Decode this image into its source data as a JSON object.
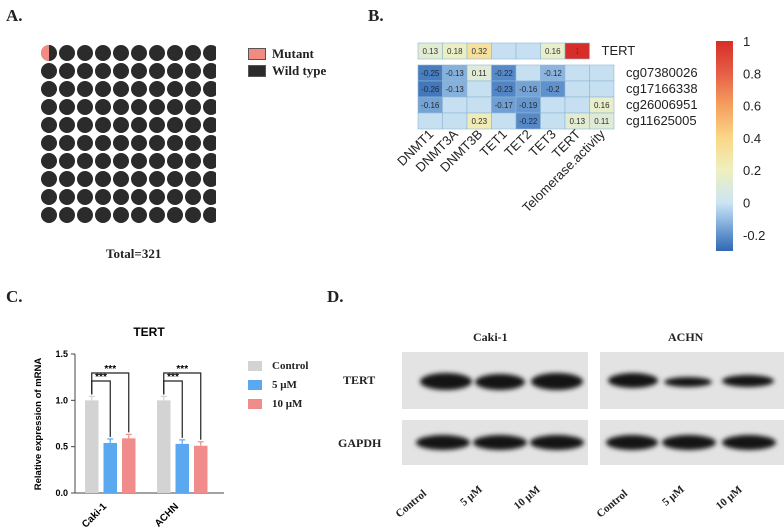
{
  "panelA": {
    "label": "A.",
    "legend": [
      {
        "name": "Mutant",
        "color": "#f28b82"
      },
      {
        "name": "Wild type",
        "color": "#2b2b2b"
      }
    ],
    "total_label": "Total=321",
    "grid_rows": 10,
    "grid_cols": 10,
    "mutant_fraction": 0.5
  },
  "panelB": {
    "label": "B.",
    "top_row_label": "TERT",
    "top_row": [
      0.13,
      0.18,
      0.32,
      null,
      null,
      0.16,
      1
    ],
    "row_labels": [
      "cg07380026",
      "cg17166338",
      "cg26006951",
      "cg11625005"
    ],
    "col_labels": [
      "DNMT1",
      "DNMT3A",
      "DNMT3B",
      "TET1",
      "TET2",
      "TET3",
      "TERT",
      "Telomerase.activity"
    ],
    "matrix": [
      [
        -0.25,
        -0.13,
        0.11,
        -0.22,
        null,
        -0.12,
        null,
        null
      ],
      [
        -0.26,
        -0.13,
        null,
        -0.23,
        -0.16,
        -0.2,
        null,
        null
      ],
      [
        -0.16,
        null,
        null,
        -0.17,
        -0.19,
        null,
        null,
        0.16
      ],
      [
        null,
        null,
        0.23,
        null,
        -0.22,
        null,
        0.13,
        0.11
      ]
    ],
    "colorbar_ticks": [
      "1",
      "0.8",
      "0.6",
      "0.4",
      "0.2",
      "0",
      "-0.2"
    ],
    "colorbar_range": [
      -0.3,
      1
    ]
  },
  "panelC": {
    "label": "C.",
    "title": "TERT",
    "ylabel": "Relative expression of mRNA",
    "yticks": [
      "1.5",
      "1.0",
      "0.5",
      "0.0"
    ],
    "sig": [
      "***",
      "***",
      "***",
      "***"
    ],
    "legend": [
      {
        "name": "Control",
        "color": "#d3d3d3"
      },
      {
        "name": "5 μM",
        "color": "#5aa8f0"
      },
      {
        "name": "10 μM",
        "color": "#f08c8c"
      }
    ],
    "chart_data": {
      "type": "bar",
      "title": "TERT",
      "ylabel": "Relative expression of mRNA",
      "ylim": [
        0,
        1.5
      ],
      "categories": [
        "Caki-1",
        "ACHN"
      ],
      "series": [
        {
          "name": "Control",
          "values": [
            1.0,
            1.0
          ]
        },
        {
          "name": "5 μM",
          "values": [
            0.54,
            0.53
          ]
        },
        {
          "name": "10 μM",
          "values": [
            0.59,
            0.51
          ]
        }
      ]
    }
  },
  "panelD": {
    "label": "D.",
    "groups": [
      "Caki-1",
      "ACHN"
    ],
    "rows": [
      "TERT",
      "GAPDH"
    ],
    "lanes": [
      "Control",
      "5 μM",
      "10 μM",
      "Control",
      "5 μM",
      "10 μM"
    ]
  }
}
